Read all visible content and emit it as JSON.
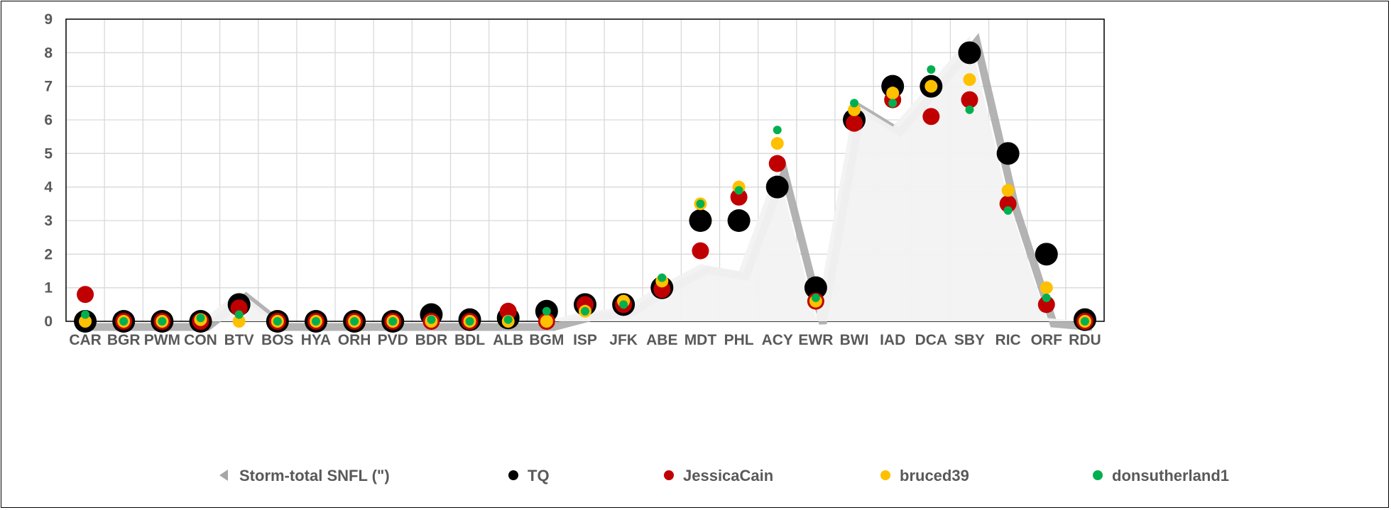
{
  "chart_data": {
    "type": "scatter",
    "title": "",
    "xlabel": "",
    "ylabel": "",
    "ylim": [
      0,
      9
    ],
    "y_ticks": [
      "0",
      "1",
      "2",
      "3",
      "4",
      "5",
      "6",
      "7",
      "8",
      "9"
    ],
    "grid": true,
    "legend_position": "bottom",
    "categories": [
      "CAR",
      "BGR",
      "PWM",
      "CON",
      "BTV",
      "BOS",
      "HYA",
      "ORH",
      "PVD",
      "BDR",
      "BDL",
      "ALB",
      "BGM",
      "ISP",
      "JFK",
      "ABE",
      "MDT",
      "PHL",
      "ACY",
      "EWR",
      "BWI",
      "IAD",
      "DCA",
      "SBY",
      "RIC",
      "ORF",
      "RDU"
    ],
    "series": [
      {
        "name": "Storm-total SNFL (\")",
        "kind": "area",
        "values": [
          0,
          0,
          0,
          0,
          0.9,
          0,
          0,
          0,
          0,
          0,
          0,
          0,
          0,
          0.3,
          0.4,
          1.1,
          1.7,
          1.5,
          4.6,
          0.1,
          6.5,
          5.8,
          7.1,
          8.5,
          3.6,
          0.1,
          0
        ]
      },
      {
        "name": "TQ",
        "kind": "marker",
        "color": "#000000",
        "size": 16,
        "values": [
          0,
          0,
          0,
          0,
          0.5,
          0,
          0,
          0,
          0,
          0.2,
          0.05,
          0.1,
          0.3,
          0.5,
          0.5,
          1,
          3,
          3,
          4,
          1,
          6,
          7,
          7,
          8,
          5,
          2,
          0.05
        ]
      },
      {
        "name": "JessicaCain",
        "kind": "marker",
        "color": "#C00000",
        "size": 12,
        "values": [
          0.8,
          0,
          0,
          0,
          0.4,
          0,
          0,
          0,
          0,
          0,
          0,
          0.3,
          0,
          0.5,
          0.5,
          0.95,
          2.1,
          3.7,
          4.7,
          0.6,
          5.9,
          6.6,
          6.1,
          6.6,
          3.5,
          0.5,
          0
        ]
      },
      {
        "name": "bruced39",
        "kind": "marker",
        "color": "#FFC000",
        "size": 9,
        "values": [
          0,
          0,
          0,
          0.05,
          0,
          0,
          0,
          0,
          0,
          0,
          0,
          0,
          0,
          0.3,
          0.6,
          1.2,
          3.5,
          4,
          5.3,
          0.6,
          6.3,
          6.8,
          7,
          7.2,
          3.9,
          1,
          0
        ]
      },
      {
        "name": "donsutherland1",
        "kind": "marker",
        "color": "#00B050",
        "size": 6,
        "values": [
          0.2,
          0,
          0,
          0.1,
          0.2,
          0,
          0,
          0,
          0,
          0.05,
          0,
          0.05,
          0.3,
          0.3,
          0.5,
          1.3,
          3.5,
          3.9,
          5.7,
          0.7,
          6.5,
          6.5,
          7.5,
          6.3,
          3.3,
          0.7,
          0
        ]
      }
    ]
  }
}
